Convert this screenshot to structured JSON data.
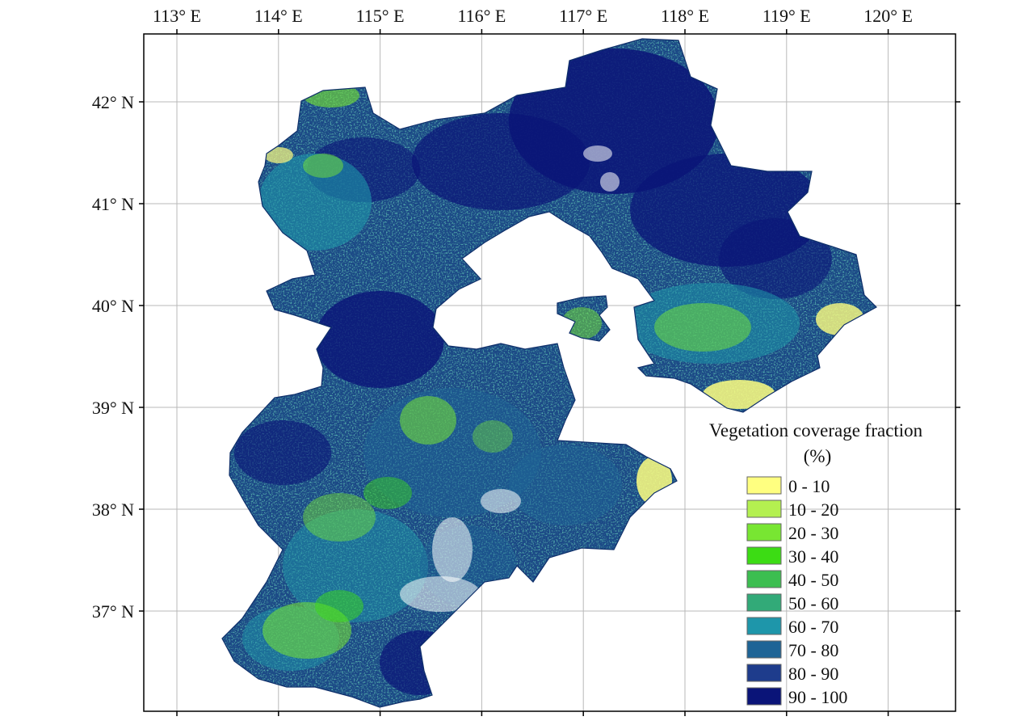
{
  "map": {
    "longitude_ticks": [
      {
        "value": 113,
        "label": "113° E"
      },
      {
        "value": 114,
        "label": "114° E"
      },
      {
        "value": 115,
        "label": "115° E"
      },
      {
        "value": 116,
        "label": "116° E"
      },
      {
        "value": 117,
        "label": "117° E"
      },
      {
        "value": 118,
        "label": "118° E"
      },
      {
        "value": 119,
        "label": "119° E"
      },
      {
        "value": 120,
        "label": "120° E"
      }
    ],
    "latitude_ticks": [
      {
        "value": 42,
        "label": "42° N"
      },
      {
        "value": 41,
        "label": "41° N"
      },
      {
        "value": 40,
        "label": "40° N"
      },
      {
        "value": 39,
        "label": "39° N"
      },
      {
        "value": 38,
        "label": "38° N"
      },
      {
        "value": 37,
        "label": "37° N"
      }
    ],
    "grid": true,
    "legend": {
      "title_line1": "Vegetation coverage fraction",
      "title_line2": "(%)",
      "placement": "lower-right",
      "classes": [
        {
          "label": "0 - 10",
          "color": "#ffff80"
        },
        {
          "label": "10 - 20",
          "color": "#b4f050"
        },
        {
          "label": "20 - 30",
          "color": "#78e632"
        },
        {
          "label": "30 - 40",
          "color": "#3cdc14"
        },
        {
          "label": "40 - 50",
          "color": "#3cbe50"
        },
        {
          "label": "50 - 60",
          "color": "#32aa78"
        },
        {
          "label": "60 - 70",
          "color": "#1e96aa"
        },
        {
          "label": "70 - 80",
          "color": "#1e6496"
        },
        {
          "label": "80 - 90",
          "color": "#1e3c8c"
        },
        {
          "label": "90 - 100",
          "color": "#0a1478"
        }
      ]
    }
  }
}
